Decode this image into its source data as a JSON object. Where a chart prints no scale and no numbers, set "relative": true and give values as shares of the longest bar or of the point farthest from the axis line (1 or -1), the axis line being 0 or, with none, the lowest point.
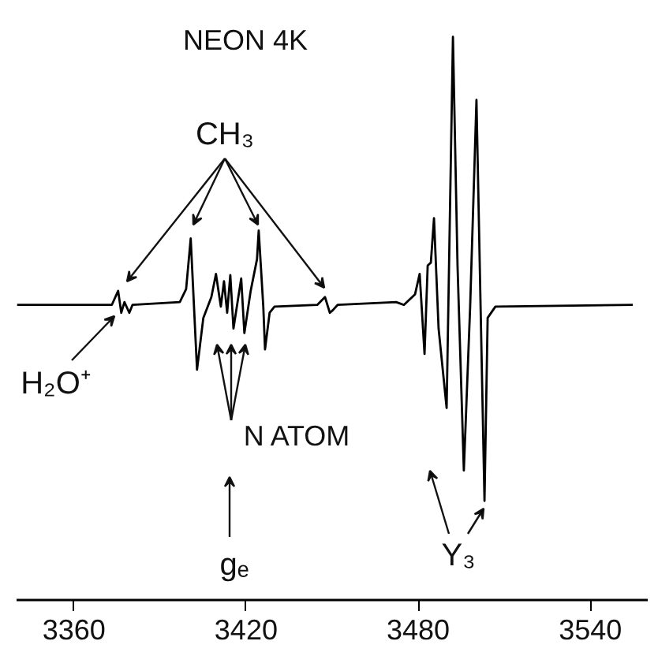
{
  "chart_data": {
    "type": "line",
    "title": "NEON 4K",
    "relative": true,
    "x": [
      3340.2,
      3373.2,
      3375.4,
      3376.5,
      3377.6,
      3379.3,
      3380.4,
      3396.9,
      3399.1,
      3400.7,
      3402.9,
      3405.1,
      3407.9,
      3409.5,
      3411.2,
      3412.3,
      3413.4,
      3414.5,
      3415.6,
      3418.3,
      3419.4,
      3421.6,
      3423.8,
      3424.4,
      3426.0,
      3426.6,
      3428.2,
      3429.9,
      3444.8,
      3447.5,
      3449.2,
      3450.3,
      3451.9,
      3472.3,
      3475.0,
      3478.9,
      3480.5,
      3482.2,
      3483.3,
      3484.4,
      3485.5,
      3487.1,
      3489.9,
      3492.1,
      3493.7,
      3495.9,
      3498.1,
      3500.3,
      3502.0,
      3503.1,
      3504.2,
      3506.9,
      3554.8
    ],
    "series": [
      {
        "color": "#000000",
        "values": [
          0.524,
          0.524,
          0.549,
          0.51,
          0.529,
          0.51,
          0.524,
          0.529,
          0.552,
          0.642,
          0.409,
          0.501,
          0.538,
          0.579,
          0.521,
          0.566,
          0.51,
          0.577,
          0.482,
          0.571,
          0.474,
          0.549,
          0.605,
          0.656,
          0.521,
          0.445,
          0.51,
          0.521,
          0.524,
          0.538,
          0.51,
          0.515,
          0.524,
          0.529,
          0.524,
          0.543,
          0.579,
          0.437,
          0.594,
          0.599,
          0.678,
          0.482,
          0.341,
          1.0,
          0.594,
          0.23,
          0.521,
          0.888,
          0.454,
          0.176,
          0.501,
          0.521,
          0.524
        ]
      }
    ],
    "xlim": [
      3340,
      3560
    ],
    "xticks": [
      3360,
      3420,
      3480,
      3540
    ],
    "annotations": [
      "CH₃",
      "H₂O⁺",
      "N ATOM",
      "gₑ",
      "Y₃"
    ]
  }
}
